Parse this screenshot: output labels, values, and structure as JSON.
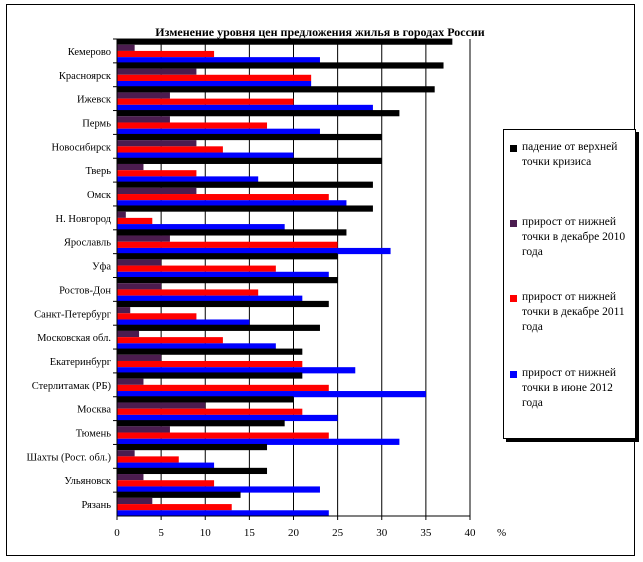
{
  "chart_data": {
    "type": "bar",
    "orientation": "horizontal",
    "title": "Изменение уровня цен предложения жилья в городах России",
    "xlabel": "%",
    "ylabel": "",
    "xlim": [
      0,
      40
    ],
    "xticks": [
      0,
      5,
      10,
      15,
      20,
      25,
      30,
      35,
      40
    ],
    "grid": true,
    "legend_position": "right",
    "categories": [
      "Кемерово",
      "Красноярск",
      "Ижевск",
      "Пермь",
      "Новосибирск",
      "Тверь",
      "Омск",
      "Н. Новгород",
      "Ярославль",
      "Уфа",
      "Ростов-Дон",
      "Санкт-Петербург",
      "Московская обл.",
      "Екатеринбург",
      "Стерлитамак (РБ)",
      "Москва",
      "Тюмень",
      "Шахты (Рост. обл.)",
      "Ульяновск",
      "Рязань"
    ],
    "series": [
      {
        "name": "падение от верхней точки кризиса",
        "color": "#000000",
        "values": [
          38,
          37,
          36,
          32,
          30,
          30,
          29,
          29,
          26,
          25,
          25,
          24,
          23,
          21,
          21,
          20,
          19,
          17,
          17,
          14
        ]
      },
      {
        "name": "прирост от нижней точки в декабре 2010 года",
        "color": "#4b1c4f",
        "values": [
          2,
          9,
          6,
          6,
          9,
          3,
          9,
          1,
          6,
          5,
          5,
          1.5,
          2.5,
          5,
          3,
          10,
          6,
          2,
          3,
          4
        ]
      },
      {
        "name": "прирост от нижней точки в декабре 2011 года",
        "color": "#ff0000",
        "values": [
          11,
          22,
          20,
          17,
          12,
          9,
          24,
          4,
          25,
          18,
          16,
          9,
          12,
          21,
          24,
          21,
          24,
          7,
          11,
          13
        ]
      },
      {
        "name": "прирост от нижней точки в июне 2012 года",
        "color": "#0000ff",
        "values": [
          23,
          22,
          29,
          23,
          20,
          16,
          26,
          19,
          31,
          24,
          21,
          15,
          18,
          27,
          35,
          25,
          32,
          11,
          23,
          24
        ]
      }
    ]
  }
}
